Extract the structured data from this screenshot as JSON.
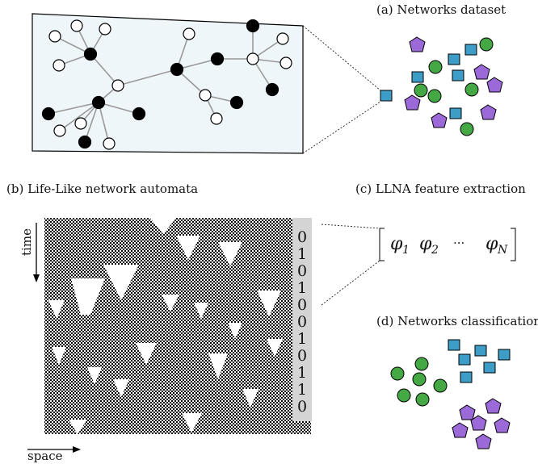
{
  "captions": {
    "a": "(a) Networks dataset",
    "b": "(b) Life-Like network automata",
    "c": "(c) LLNA feature extraction",
    "d": "(d) Networks classification"
  },
  "axes": {
    "time": "time",
    "space": "space"
  },
  "feature_vector": {
    "phi": "φ",
    "sub1": "1",
    "sub2": "2",
    "ellipsis": "···",
    "subN": "N"
  },
  "binary_sequence": [
    "0",
    "1",
    "0",
    "1",
    "0",
    "0",
    "1",
    "0",
    "1",
    "1",
    "0"
  ],
  "colors": {
    "network_panel_bg": "#eef6fa",
    "node_black": "#000000",
    "node_white": "#ffffff",
    "edge": "#999999",
    "square_blue": "#3d9dc6",
    "circle_green": "#44a845",
    "pentagon_purple": "#9b6ad8",
    "bit_column": "#d4d4d4"
  },
  "icons": [
    "square-node-icon",
    "circle-node-icon",
    "pentagon-node-icon",
    "arrow-icon"
  ]
}
